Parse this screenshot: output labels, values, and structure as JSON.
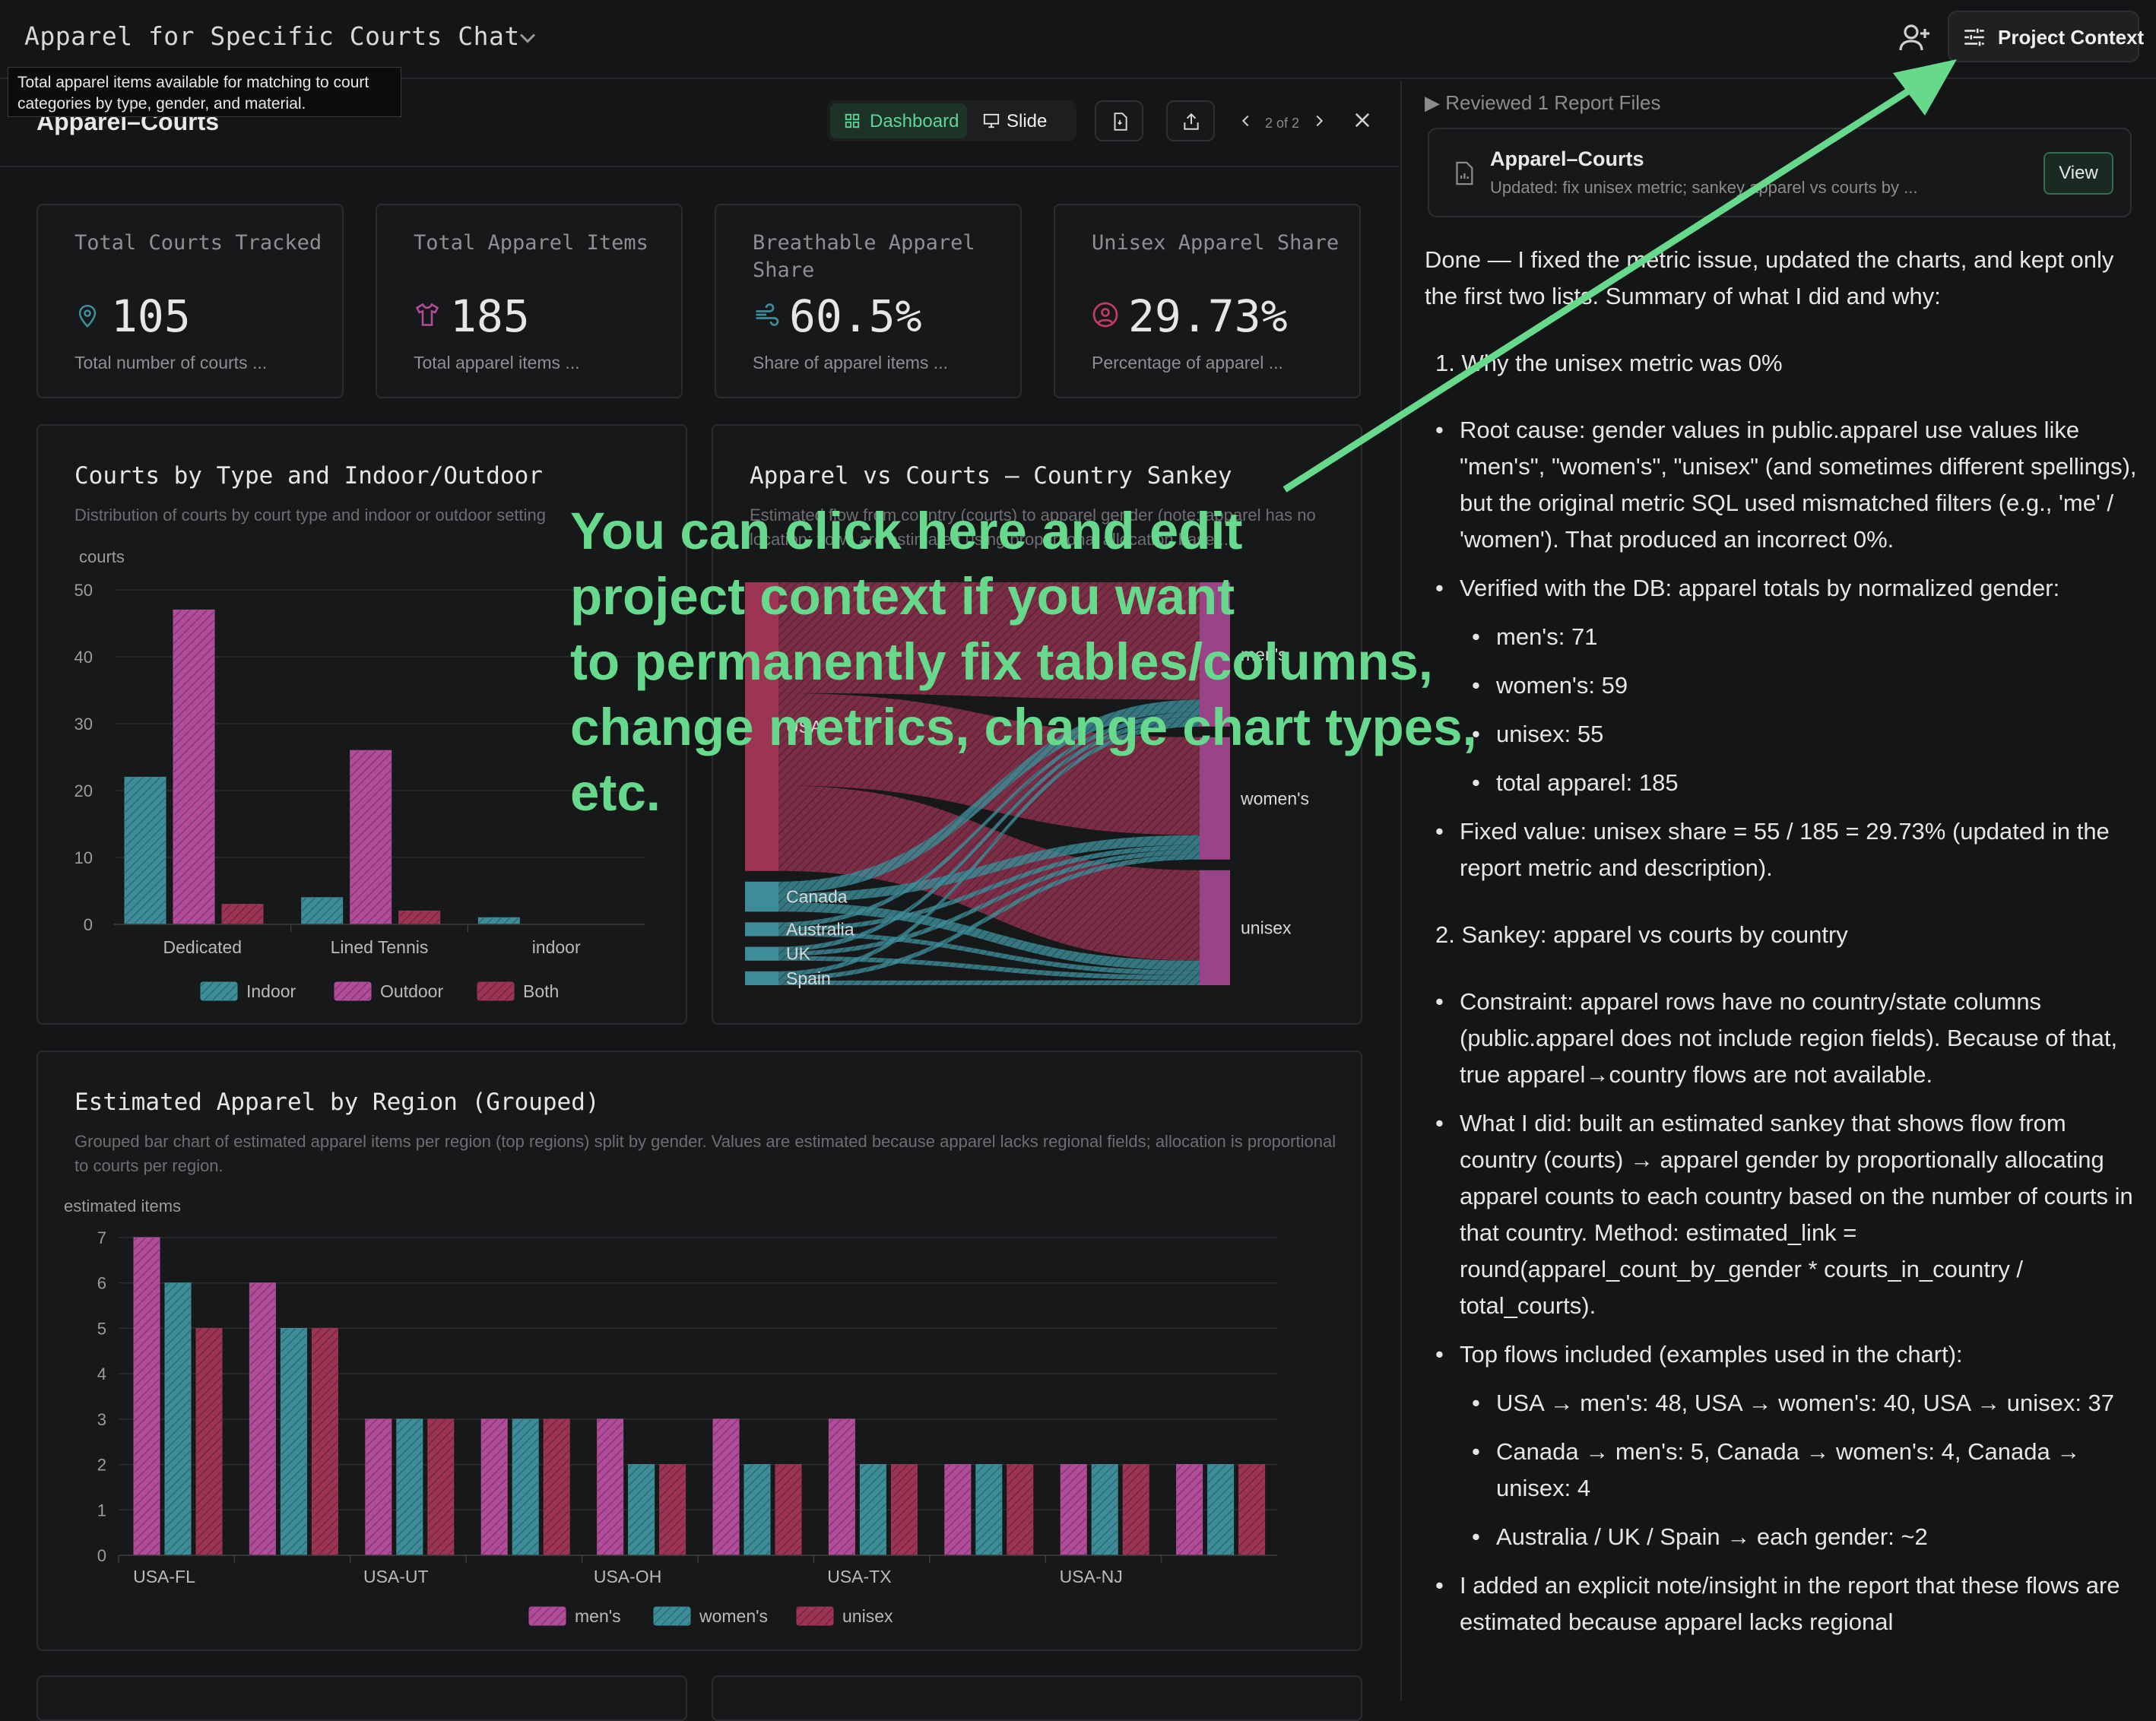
{
  "topbar": {
    "chat_title": "Apparel for Specific Courts Chat",
    "project_context_label": "Project Context"
  },
  "tooltip": "Total apparel items available for matching to court categories by type, gender, and material.",
  "report": {
    "title": "Apparel–Courts",
    "tab_dashboard": "Dashboard",
    "tab_slide": "Slide",
    "pager": "2 of 2"
  },
  "kpis": [
    {
      "label": "Total Courts Tracked",
      "value": "105",
      "sub": "Total number of courts ...",
      "icon": "location-pin-icon"
    },
    {
      "label": "Total Apparel Items",
      "value": "185",
      "sub": "Total apparel items ...",
      "icon": "shirt-icon"
    },
    {
      "label": "Breathable Apparel Share",
      "value": "60.5%",
      "sub": "Share of apparel items ...",
      "icon": "wind-icon"
    },
    {
      "label": "Unisex Apparel Share",
      "value": "29.73%",
      "sub": "Percentage of apparel ...",
      "icon": "person-circle-icon"
    }
  ],
  "courts_chart": {
    "title": "Courts by Type and Indoor/Outdoor",
    "subtitle": "Distribution of courts by court type and indoor or outdoor setting",
    "ylabel": "courts"
  },
  "sankey_chart": {
    "title": "Apparel vs Courts — Country Sankey",
    "subtitle": "Estimated flow from country (courts) to apparel gender (note: apparel has no location; flows are estimated using proportional allocation base..."
  },
  "region_chart": {
    "title": "Estimated Apparel by Region (Grouped)",
    "subtitle": "Grouped bar chart of estimated apparel items per region (top regions) split by gender. Values are estimated because apparel lacks regional fields; allocation is proportional to courts per region.",
    "ylabel": "estimated items"
  },
  "chart_data": [
    {
      "type": "bar",
      "title": "Courts by Type and Indoor/Outdoor",
      "ylabel": "courts",
      "ylim": [
        0,
        50
      ],
      "yticks": [
        0,
        10,
        20,
        30,
        40,
        50
      ],
      "categories": [
        "Dedicated",
        "Lined Tennis",
        "indoor"
      ],
      "series": [
        {
          "name": "Indoor",
          "color": "#3d8d99",
          "values": [
            22,
            4,
            1
          ]
        },
        {
          "name": "Outdoor",
          "color": "#b04c9a",
          "values": [
            47,
            26,
            0
          ]
        },
        {
          "name": "Both",
          "color": "#9c3454",
          "values": [
            3,
            2,
            0
          ]
        }
      ],
      "grid": true,
      "legend": "bottom"
    },
    {
      "type": "sankey",
      "title": "Apparel vs Courts — Country Sankey",
      "sources": [
        "USA",
        "Canada",
        "Australia",
        "UK",
        "Spain"
      ],
      "targets": [
        "men's",
        "women's",
        "unisex"
      ],
      "flows": [
        {
          "from": "USA",
          "to": "men's",
          "value": 48
        },
        {
          "from": "USA",
          "to": "women's",
          "value": 40
        },
        {
          "from": "USA",
          "to": "unisex",
          "value": 37
        },
        {
          "from": "Canada",
          "to": "men's",
          "value": 5
        },
        {
          "from": "Canada",
          "to": "women's",
          "value": 4
        },
        {
          "from": "Canada",
          "to": "unisex",
          "value": 4
        },
        {
          "from": "Australia",
          "to": "men's",
          "value": 2
        },
        {
          "from": "Australia",
          "to": "women's",
          "value": 2
        },
        {
          "from": "Australia",
          "to": "unisex",
          "value": 2
        },
        {
          "from": "UK",
          "to": "men's",
          "value": 2
        },
        {
          "from": "UK",
          "to": "women's",
          "value": 2
        },
        {
          "from": "UK",
          "to": "unisex",
          "value": 2
        },
        {
          "from": "Spain",
          "to": "men's",
          "value": 2
        },
        {
          "from": "Spain",
          "to": "women's",
          "value": 2
        },
        {
          "from": "Spain",
          "to": "unisex",
          "value": 2
        }
      ]
    },
    {
      "type": "bar",
      "title": "Estimated Apparel by Region (Grouped)",
      "ylabel": "estimated items",
      "ylim": [
        0,
        7
      ],
      "yticks": [
        0,
        1,
        2,
        3,
        4,
        5,
        6,
        7
      ],
      "xtick_labels": [
        "USA-FL",
        "USA-UT",
        "USA-OH",
        "USA-TX",
        "USA-NJ"
      ],
      "group_count": 10,
      "series": [
        {
          "name": "men's",
          "color": "#b04c9a",
          "values": [
            7,
            6,
            3,
            3,
            3,
            3,
            3,
            2,
            2,
            2
          ]
        },
        {
          "name": "women's",
          "color": "#3d8d99",
          "values": [
            6,
            5,
            3,
            3,
            2,
            2,
            2,
            2,
            2,
            2
          ]
        },
        {
          "name": "unisex",
          "color": "#9c3454",
          "values": [
            5,
            5,
            3,
            3,
            2,
            2,
            2,
            2,
            2,
            2
          ]
        }
      ],
      "grid": true,
      "legend": "bottom"
    }
  ],
  "right_panel": {
    "reviewed": "▶ Reviewed 1 Report Files",
    "file_name": "Apparel–Courts",
    "file_desc": "Updated: fix unisex metric; sankey apparel vs courts by ...",
    "file_view": "View",
    "intro": "Done — I fixed the metric issue, updated the charts, and kept only the first two lists. Summary of what I did and why:",
    "h1": "1. Why the unisex metric was 0%",
    "b1": "Root cause: gender values in public.apparel use values like \"men's\", \"women's\", \"unisex\" (and sometimes different spellings), but the original metric SQL used mismatched filters (e.g., 'me' / 'women'). That produced an incorrect 0%.",
    "b2": "Verified with the DB: apparel totals by normalized gender:",
    "b2a": "men's: 71",
    "b2b": "women's: 59",
    "b2c": "unisex: 55",
    "b2d": "total apparel: 185",
    "b3": "Fixed value: unisex share = 55 / 185 = 29.73% (updated in the report metric and description).",
    "h2": "2. Sankey: apparel vs courts by country",
    "b4": "Constraint: apparel rows have no country/state columns (public.apparel does not include region fields). Because of that, true apparel→country flows are not available.",
    "b5": "What I did: built an estimated sankey that shows flow from country (courts) → apparel gender by proportionally allocating apparel counts to each country based on the number of courts in that country. Method: estimated_link = round(apparel_count_by_gender * courts_in_country / total_courts).",
    "b6": "Top flows included (examples used in the chart):",
    "b6a": "USA → men's: 48, USA → women's: 40, USA → unisex: 37",
    "b6b": "Canada → men's: 5, Canada → women's: 4, Canada → unisex: 4",
    "b6c": "Australia / UK / Spain → each gender: ~2",
    "b7": "I added an explicit note/insight in the report that these flows are estimated because apparel lacks regional"
  },
  "overlay": {
    "line1": "You can click here and edit",
    "line2": "project context if you want",
    "line3": "to permanently fix tables/columns,",
    "line4": "change metrics, change chart types,",
    "line5": "etc."
  },
  "colors": {
    "accent_green": "#67d98d",
    "indoor": "#3d8d99",
    "outdoor": "#b04c9a",
    "both": "#9c3454"
  }
}
